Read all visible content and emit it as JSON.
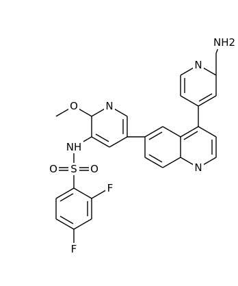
{
  "atoms": [
    {
      "label": "NH2"
    },
    {
      "label": "N"
    },
    {
      "label": "N"
    },
    {
      "label": "O"
    },
    {
      "label": "NH"
    },
    {
      "label": "S"
    },
    {
      "label": "O"
    },
    {
      "label": "O"
    },
    {
      "label": "F"
    },
    {
      "label": "F"
    },
    {
      "label": "N"
    }
  ]
}
